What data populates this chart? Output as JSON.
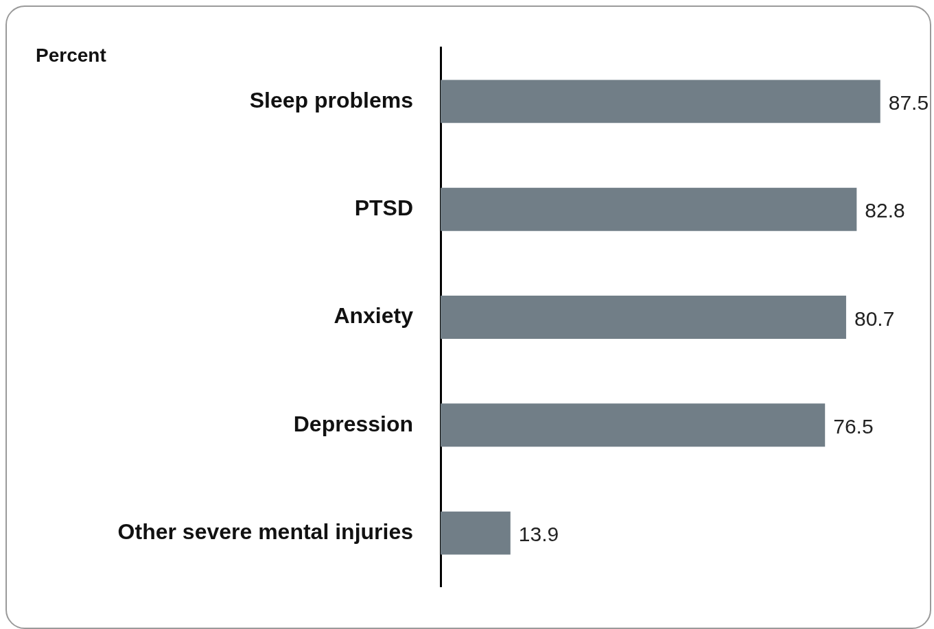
{
  "chart_data": {
    "type": "bar",
    "orientation": "horizontal",
    "title": "Percent",
    "categories": [
      "Sleep problems",
      "PTSD",
      "Anxiety",
      "Depression",
      "Other severe mental injuries"
    ],
    "values": [
      87.5,
      82.8,
      80.7,
      76.5,
      13.9
    ],
    "color": "#717e87",
    "data_labels": true,
    "legend": false
  }
}
